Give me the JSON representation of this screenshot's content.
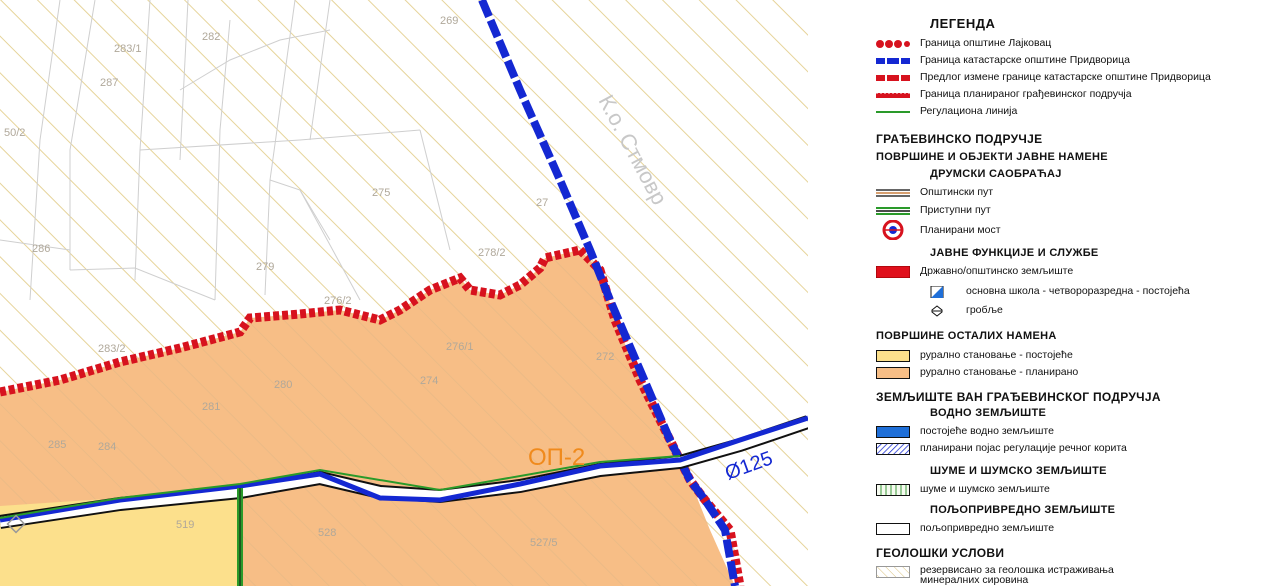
{
  "map": {
    "parcels": [
      "283/1",
      "282",
      "269",
      "287",
      "50/2",
      "275",
      "286",
      "279",
      "27",
      "278/2",
      "276/2",
      "283/2",
      "280",
      "276/1",
      "274",
      "281",
      "272",
      "285",
      "284",
      "519",
      "528",
      "527/5"
    ],
    "zone_label": "ОП-2",
    "pipe_label": "Ø125",
    "cadastral_label": "К.о. Стмовр",
    "colors": {
      "rural_planned": "#f7be86",
      "rural_existing": "#fce08c",
      "hatch": "#e6d49a",
      "municipality_boundary": "#d7121e",
      "water": "#1428d2",
      "regulation_line": "#2a9a2a"
    }
  },
  "legend": {
    "title": "ЛЕГЕНДА",
    "boundaries": [
      "Граница општине Лајковац",
      "Граница катастарске општине Придворица",
      "Предлог измене границе катастарске општине Придворица",
      "Граница планираног грађевинског подручја",
      "Регулациона линија"
    ],
    "building_area": "ГРАЂЕВИНСКО ПОДРУЧЈЕ",
    "public_use": "ПОВРШИНЕ И ОБЈЕКТИ ЈАВНЕ НАМЕНЕ",
    "road_traffic": "ДРУМСКИ САОБРАЋАЈ",
    "roads": [
      "Општински пут",
      "Приступни пут",
      "Планирани мост"
    ],
    "public_functions": "ЈАВНЕ ФУНКЦИЈЕ И СЛУЖБЕ",
    "state_land": "Државно/општинско земљиште",
    "school": "основна школа - четвороразредна - постојећа",
    "cemetery": "гробље",
    "other_uses": "ПОВРШИНЕ  ОСТАЛИХ НАМЕНА",
    "rural": [
      "рурално  становање - постојеће",
      "рурално  становање - планирано"
    ],
    "outside_area": "ЗЕМЉИШТЕ ВАН ГРАЂЕВИНСКОГ ПОДРУЧЈА",
    "water_land": "ВОДНО ЗЕМЉИШТЕ",
    "water_items": [
      "постојеће водно земљиште",
      "планирани појас регулације речног корита"
    ],
    "forest": "ШУМЕ И ШУМСКО ЗЕМЉИШТЕ",
    "forest_item": "шуме и шумско земљиште",
    "agri": "ПОЉОПРИВРЕДНО ЗЕМЉИШТЕ",
    "agri_item": "пољопривредно земљиште",
    "geology": "ГЕОЛОШКИ УСЛОВИ",
    "geology_item": "резервисано за геолошка истраживања минералних сировина"
  }
}
